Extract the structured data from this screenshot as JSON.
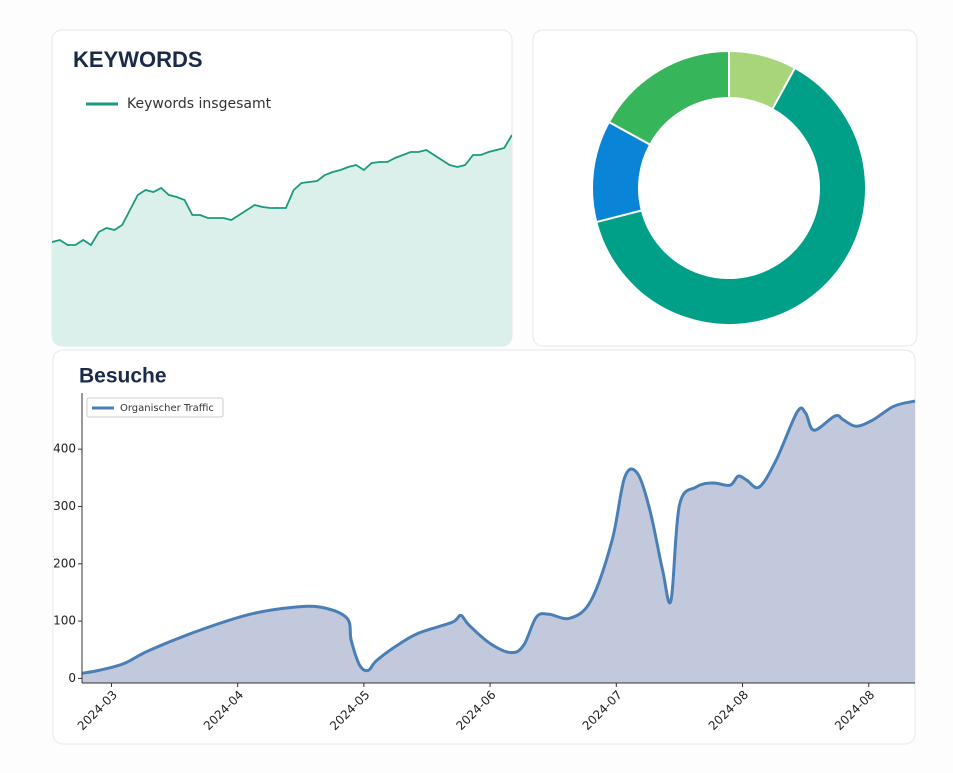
{
  "chart_data": [
    {
      "type": "area",
      "title": "KEYWORDS",
      "series": [
        {
          "name": "Keywords insgesamt",
          "color": "#1a9a7f",
          "values": [
            103,
            105,
            100,
            100,
            105,
            100,
            113,
            117,
            115,
            120,
            135,
            150,
            155,
            153,
            157,
            150,
            148,
            145,
            130,
            130,
            127,
            127,
            127,
            125,
            130,
            135,
            140,
            138,
            137,
            137,
            137,
            155,
            162,
            163,
            164,
            170,
            173,
            175,
            178,
            180,
            175,
            182,
            183,
            183,
            187,
            190,
            193,
            193,
            195,
            190,
            185,
            180,
            178,
            180,
            190,
            190,
            193,
            195,
            197,
            210
          ]
        }
      ],
      "fill": "#dbf0eb",
      "legend": "upper left"
    },
    {
      "type": "donut",
      "values": [
        8,
        63,
        12,
        17
      ],
      "colors": [
        "#a8d47a",
        "#00a088",
        "#0984d6",
        "#37b55a"
      ]
    },
    {
      "type": "line",
      "title": "Besuche",
      "x": [
        0,
        4,
        10,
        16,
        28,
        40,
        50,
        57,
        63,
        64,
        66,
        68,
        70,
        75,
        80,
        88,
        90,
        92,
        97,
        102,
        105,
        108,
        111,
        116,
        121,
        126,
        129,
        132,
        135,
        138,
        140,
        142,
        146,
        150,
        154,
        156,
        158,
        161,
        165,
        170,
        172,
        174,
        179,
        181,
        184,
        188,
        193,
        198
      ],
      "series": [
        {
          "name": "Organischer Traffic",
          "color": "#4a7fb5",
          "values": [
            9,
            14,
            26,
            49,
            84,
            112,
            124,
            124,
            105,
            66,
            23,
            14,
            31,
            58,
            79,
            98,
            110,
            93,
            61,
            45,
            58,
            107,
            112,
            105,
            136,
            241,
            351,
            358,
            293,
            189,
            136,
            302,
            334,
            341,
            337,
            353,
            346,
            334,
            381,
            465,
            463,
            433,
            458,
            451,
            440,
            451,
            475,
            484
          ]
        }
      ],
      "area_color": "#c3c9dc",
      "xlim": [
        0,
        198
      ],
      "ylim": [
        -8,
        498
      ],
      "xticks": [
        {
          "value": 7,
          "label": "2024-03"
        },
        {
          "value": 37,
          "label": "2024-04"
        },
        {
          "value": 67,
          "label": "2024-05"
        },
        {
          "value": 97,
          "label": "2024-06"
        },
        {
          "value": 127,
          "label": "2024-07"
        },
        {
          "value": 157,
          "label": "2024-08"
        },
        {
          "value": 187,
          "label": "2024-08"
        }
      ],
      "yticks": [
        0,
        100,
        200,
        300,
        400
      ],
      "legend": "upper left"
    }
  ]
}
